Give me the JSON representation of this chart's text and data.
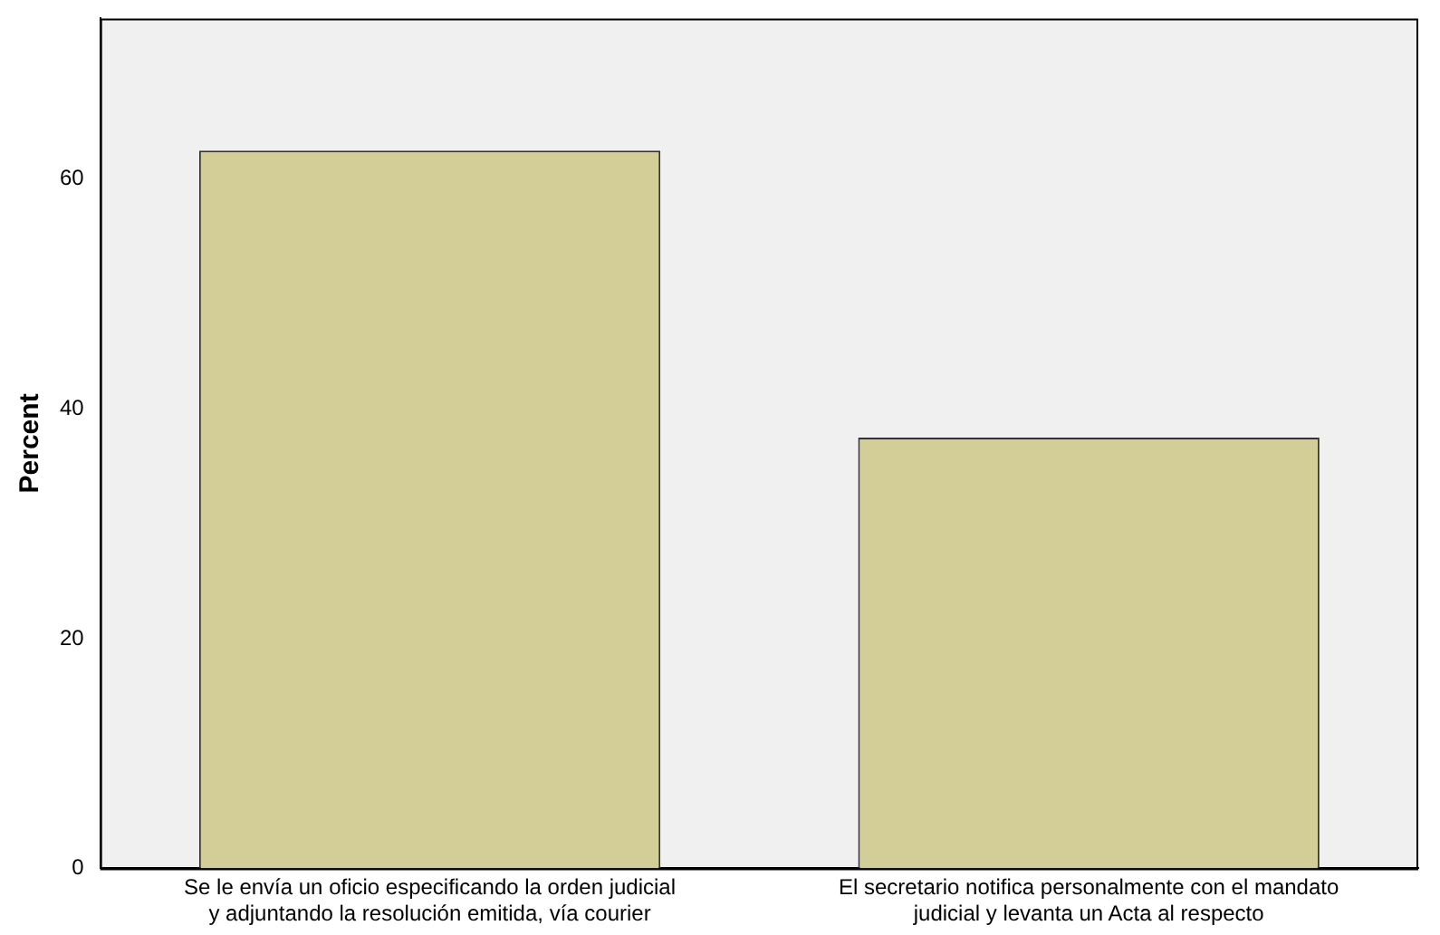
{
  "chart_data": {
    "type": "bar",
    "ylabel": "Percent",
    "categories": [
      "Se le envía un oficio especificando la orden judicial y adjuntando la resolución emitida, vía courier",
      "El secretario notifica personalmente con el mandato judicial y levanta un Acta al respecto"
    ],
    "values": [
      62.5,
      37.5
    ],
    "color": "#d3ce97",
    "ylim": [
      0,
      74
    ],
    "yticks": [
      0,
      20,
      40,
      60
    ],
    "grid": false,
    "legend": false
  }
}
